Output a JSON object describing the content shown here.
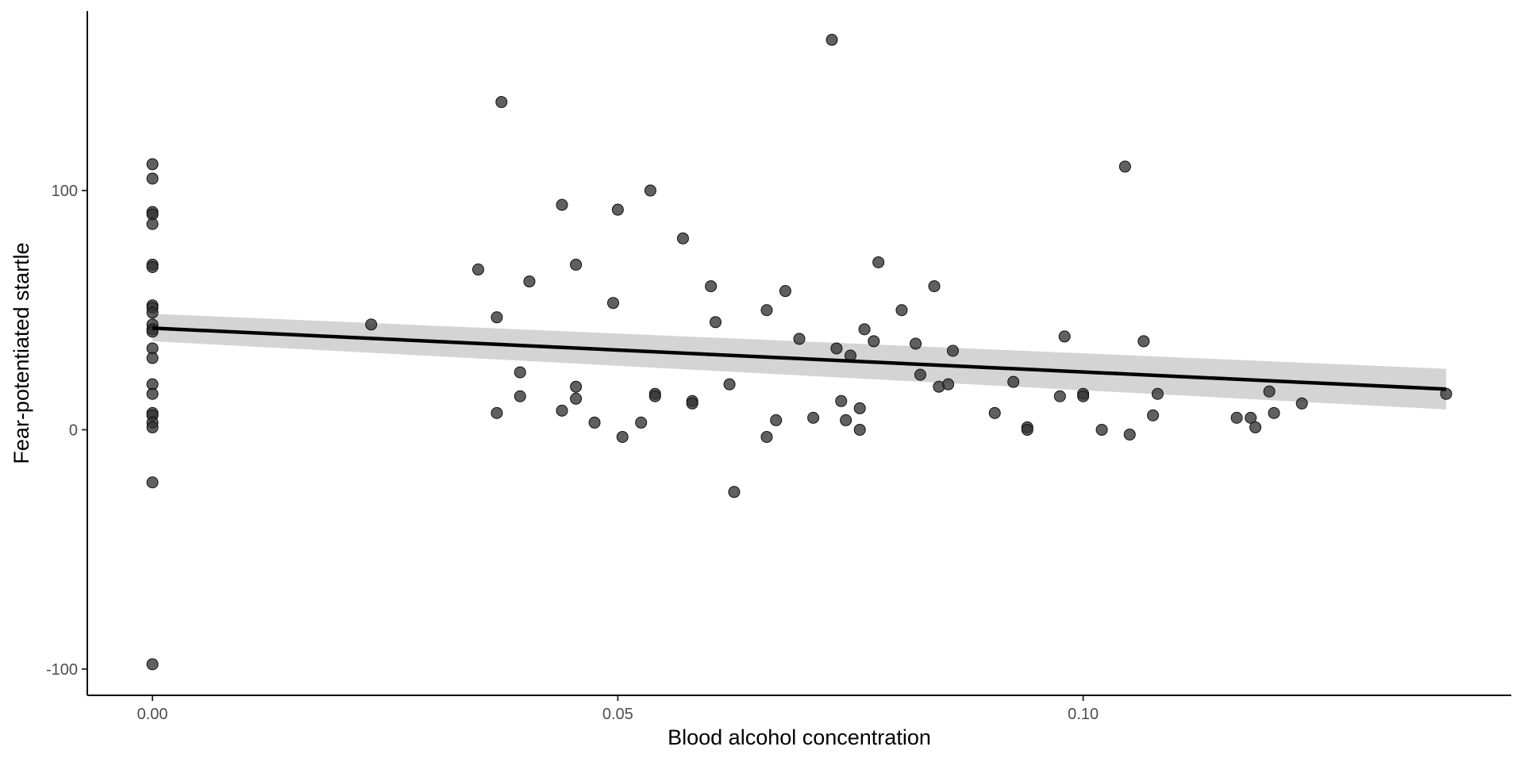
{
  "chart_data": {
    "type": "scatter",
    "title": "",
    "xlabel": "Blood alcohol concentration",
    "ylabel": "Fear-potentiated startle",
    "xlim": [
      -0.007,
      0.146
    ],
    "ylim": [
      -111,
      175
    ],
    "x_ticks": [
      0.0,
      0.05,
      0.1
    ],
    "x_tick_labels": [
      "0.00",
      "0.05",
      "0.10"
    ],
    "y_ticks": [
      -100,
      0,
      100
    ],
    "y_tick_labels": [
      "-100",
      "0",
      "100"
    ],
    "grid": false,
    "legend": "none",
    "colors": {
      "points": "#333333",
      "line": "#000000",
      "band": "#cccccc",
      "axis": "#000000"
    },
    "points": [
      {
        "x": 0.0,
        "y": 111
      },
      {
        "x": 0.0,
        "y": 105
      },
      {
        "x": 0.0,
        "y": 91
      },
      {
        "x": 0.0,
        "y": 90
      },
      {
        "x": 0.0,
        "y": 86
      },
      {
        "x": 0.0,
        "y": 69
      },
      {
        "x": 0.0,
        "y": 68
      },
      {
        "x": 0.0,
        "y": 52
      },
      {
        "x": 0.0,
        "y": 51
      },
      {
        "x": 0.0,
        "y": 49
      },
      {
        "x": 0.0,
        "y": 44
      },
      {
        "x": 0.0,
        "y": 42
      },
      {
        "x": 0.0,
        "y": 41
      },
      {
        "x": 0.0,
        "y": 34
      },
      {
        "x": 0.0,
        "y": 30
      },
      {
        "x": 0.0,
        "y": 19
      },
      {
        "x": 0.0,
        "y": 15
      },
      {
        "x": 0.0,
        "y": 7
      },
      {
        "x": 0.0,
        "y": 6
      },
      {
        "x": 0.0,
        "y": 3
      },
      {
        "x": 0.0,
        "y": 1
      },
      {
        "x": 0.0,
        "y": -22
      },
      {
        "x": 0.0,
        "y": -98
      },
      {
        "x": 0.0235,
        "y": 44
      },
      {
        "x": 0.035,
        "y": 67
      },
      {
        "x": 0.037,
        "y": 47
      },
      {
        "x": 0.037,
        "y": 7
      },
      {
        "x": 0.0375,
        "y": 137
      },
      {
        "x": 0.0395,
        "y": 24
      },
      {
        "x": 0.0395,
        "y": 14
      },
      {
        "x": 0.0405,
        "y": 62
      },
      {
        "x": 0.044,
        "y": 94
      },
      {
        "x": 0.044,
        "y": 8
      },
      {
        "x": 0.0455,
        "y": 69
      },
      {
        "x": 0.0455,
        "y": 18
      },
      {
        "x": 0.0455,
        "y": 13
      },
      {
        "x": 0.0475,
        "y": 3
      },
      {
        "x": 0.0495,
        "y": 53
      },
      {
        "x": 0.05,
        "y": 92
      },
      {
        "x": 0.0505,
        "y": -3
      },
      {
        "x": 0.0525,
        "y": 3
      },
      {
        "x": 0.0535,
        "y": 100
      },
      {
        "x": 0.054,
        "y": 15
      },
      {
        "x": 0.054,
        "y": 14
      },
      {
        "x": 0.057,
        "y": 80
      },
      {
        "x": 0.058,
        "y": 12
      },
      {
        "x": 0.058,
        "y": 11
      },
      {
        "x": 0.06,
        "y": 60
      },
      {
        "x": 0.0605,
        "y": 45
      },
      {
        "x": 0.062,
        "y": 19
      },
      {
        "x": 0.0625,
        "y": -26
      },
      {
        "x": 0.066,
        "y": 50
      },
      {
        "x": 0.066,
        "y": -3
      },
      {
        "x": 0.067,
        "y": 4
      },
      {
        "x": 0.068,
        "y": 58
      },
      {
        "x": 0.0695,
        "y": 38
      },
      {
        "x": 0.071,
        "y": 5
      },
      {
        "x": 0.073,
        "y": 163
      },
      {
        "x": 0.0735,
        "y": 34
      },
      {
        "x": 0.074,
        "y": 12
      },
      {
        "x": 0.0745,
        "y": 4
      },
      {
        "x": 0.075,
        "y": 31
      },
      {
        "x": 0.076,
        "y": 9
      },
      {
        "x": 0.076,
        "y": 0
      },
      {
        "x": 0.0765,
        "y": 42
      },
      {
        "x": 0.0775,
        "y": 37
      },
      {
        "x": 0.078,
        "y": 70
      },
      {
        "x": 0.0805,
        "y": 50
      },
      {
        "x": 0.082,
        "y": 36
      },
      {
        "x": 0.0825,
        "y": 23
      },
      {
        "x": 0.084,
        "y": 60
      },
      {
        "x": 0.0845,
        "y": 18
      },
      {
        "x": 0.0855,
        "y": 19
      },
      {
        "x": 0.086,
        "y": 33
      },
      {
        "x": 0.0905,
        "y": 7
      },
      {
        "x": 0.0925,
        "y": 20
      },
      {
        "x": 0.094,
        "y": 1
      },
      {
        "x": 0.094,
        "y": 0
      },
      {
        "x": 0.0975,
        "y": 14
      },
      {
        "x": 0.098,
        "y": 39
      },
      {
        "x": 0.1,
        "y": 15
      },
      {
        "x": 0.1,
        "y": 14
      },
      {
        "x": 0.102,
        "y": 0
      },
      {
        "x": 0.1045,
        "y": 110
      },
      {
        "x": 0.105,
        "y": -2
      },
      {
        "x": 0.1065,
        "y": 37
      },
      {
        "x": 0.1075,
        "y": 6
      },
      {
        "x": 0.108,
        "y": 15
      },
      {
        "x": 0.1165,
        "y": 5
      },
      {
        "x": 0.118,
        "y": 5
      },
      {
        "x": 0.1185,
        "y": 1
      },
      {
        "x": 0.12,
        "y": 16
      },
      {
        "x": 0.1205,
        "y": 7
      },
      {
        "x": 0.1235,
        "y": 11
      },
      {
        "x": 0.139,
        "y": 15
      }
    ],
    "regression": {
      "x": [
        0.0,
        0.139
      ],
      "fit": [
        42.5,
        17.0
      ],
      "lower": [
        37.0,
        8.5
      ],
      "upper": [
        48.5,
        25.5
      ]
    }
  }
}
